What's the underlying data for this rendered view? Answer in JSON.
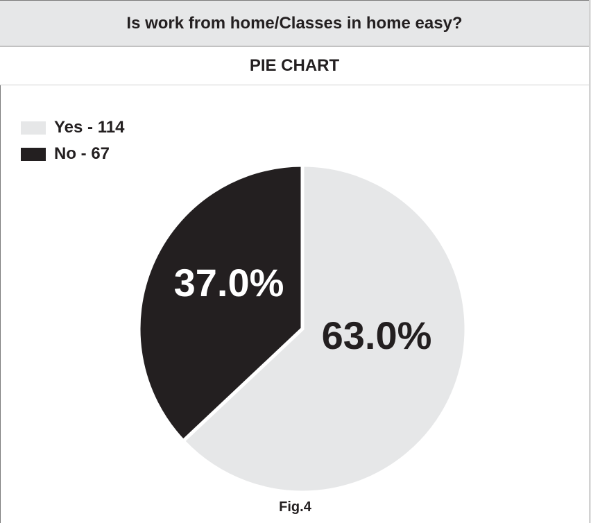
{
  "header": {
    "question": "Is work from home/Classes in home easy?",
    "subtitle": "PIE CHART"
  },
  "chart_data": {
    "type": "pie",
    "categories": [
      "Yes",
      "No"
    ],
    "values": [
      114,
      67
    ],
    "percent_labels": [
      "63.0%",
      "37.0%"
    ],
    "legend_labels": [
      "Yes - 114",
      "No - 67"
    ],
    "colors": [
      "#e6e7e8",
      "#231f20"
    ],
    "label_colors": [
      "#231f20",
      "#ffffff"
    ],
    "legend_placement": "top-left"
  },
  "caption": "Fig.4"
}
